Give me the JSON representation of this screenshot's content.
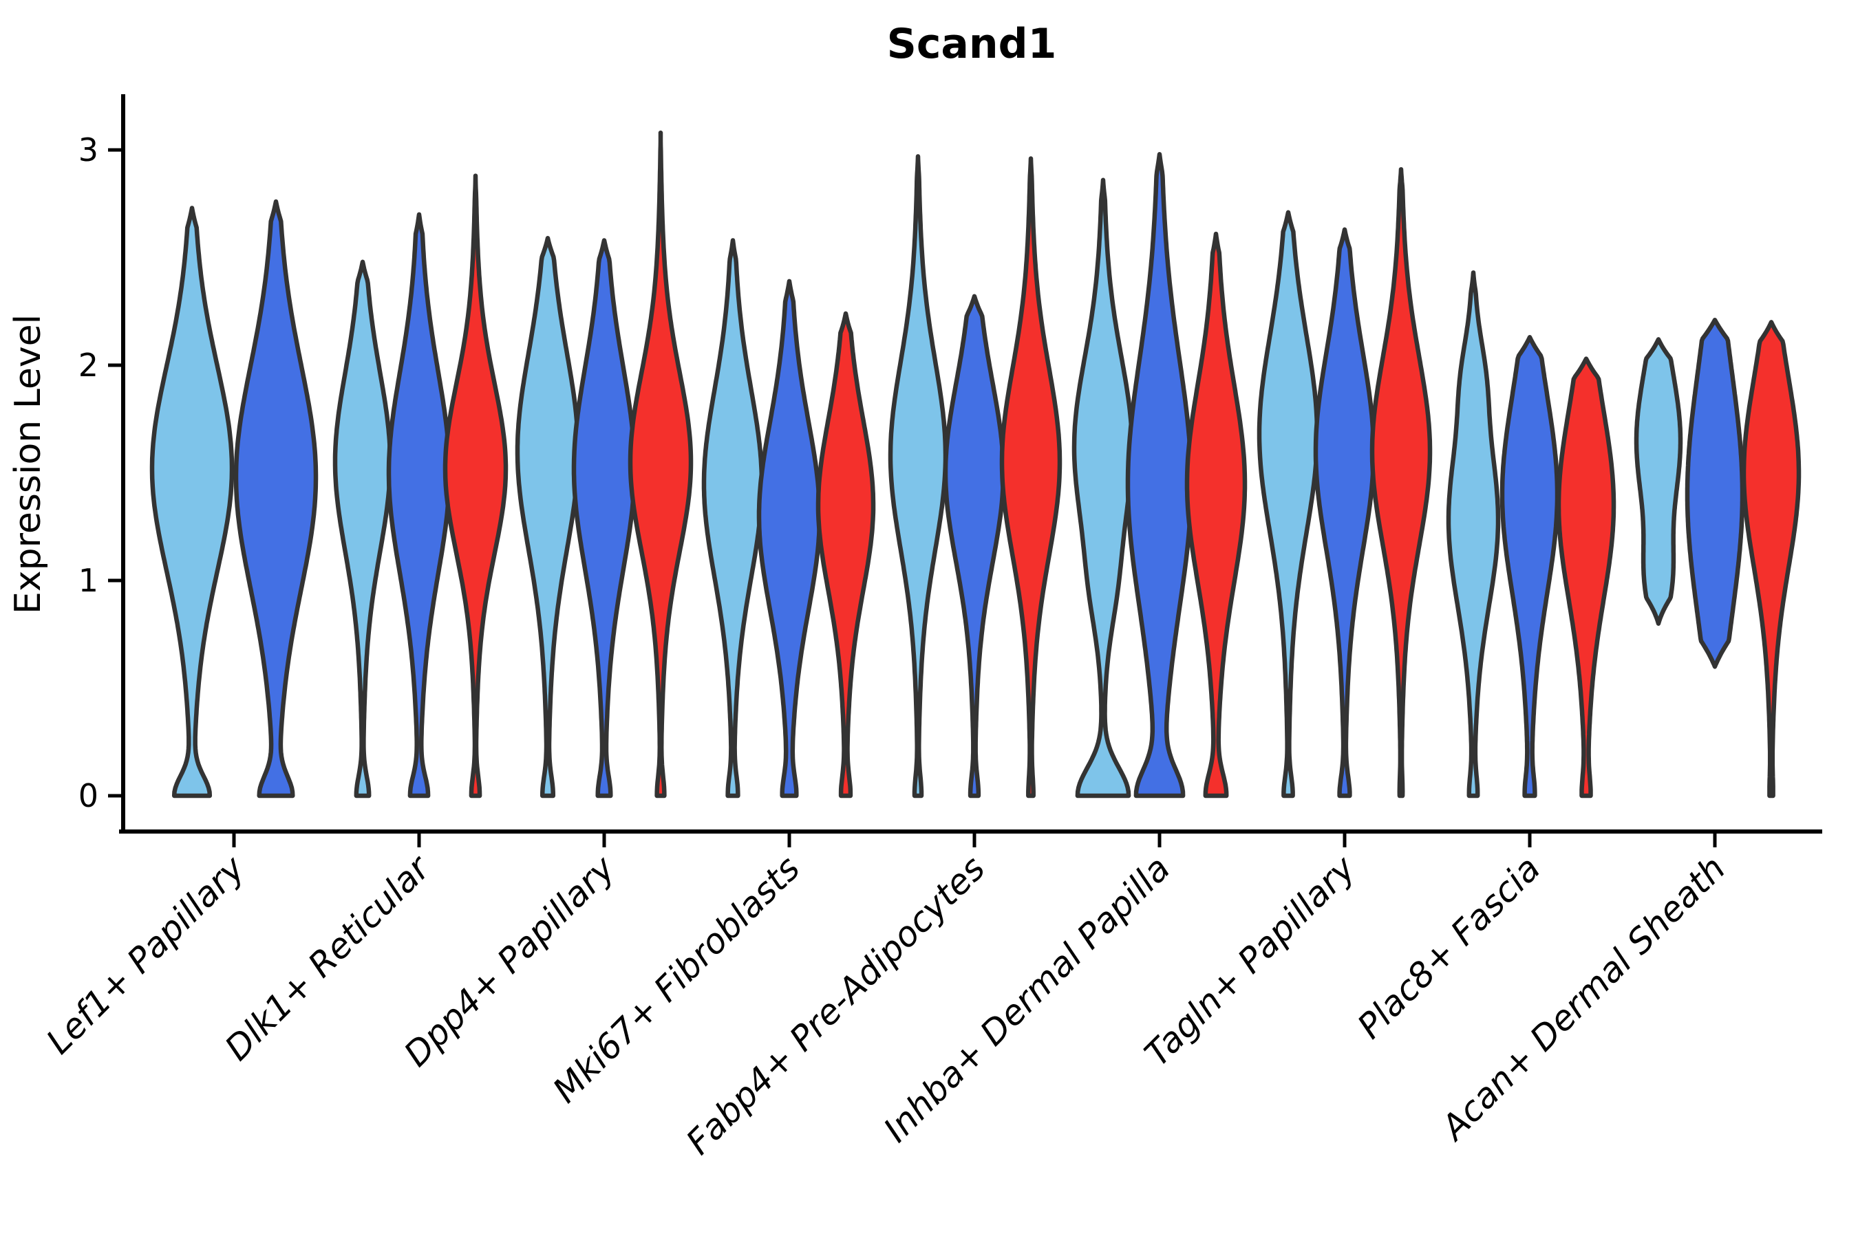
{
  "chart_data": {
    "type": "violin",
    "title": "Scand1",
    "ylabel": "Expression Level",
    "xlabel": "",
    "yticks": [
      0,
      1,
      2,
      3
    ],
    "ylim": [
      0,
      3.3
    ],
    "x_tick_rotation": 45,
    "grid": false,
    "legend": "none",
    "colors": {
      "skyblue": "#7EC4EA",
      "royalblue": "#4370E4",
      "red": "#F4302C",
      "outline": "#333333",
      "axis": "#000000"
    },
    "categories": [
      "Lef1+ Papillary",
      "Dlk1+ Reticular",
      "Dpp4+ Papillary",
      "Mki67+ Fibroblasts",
      "Fabp4+ Pre-Adipocytes",
      "Inhba+ Dermal Papilla",
      "Tagln+ Papillary",
      "Plac8+ Fascia",
      "Acan+ Dermal Sheath"
    ],
    "groups": [
      {
        "category": "Lef1+ Papillary",
        "violins": [
          {
            "color": "skyblue",
            "max": 2.73,
            "min": 0,
            "peak": 1.52,
            "spread": 0.46,
            "tail": 0.28,
            "zero_spike": 0.4,
            "zero_spread": 0.09,
            "halfwidth": 58
          },
          {
            "color": "royalblue",
            "max": 2.76,
            "min": 0,
            "peak": 1.48,
            "spread": 0.5,
            "tail": 0.28,
            "zero_spike": 0.35,
            "zero_spread": 0.09,
            "halfwidth": 58
          }
        ]
      },
      {
        "category": "Dlk1+ Reticular",
        "violins": [
          {
            "color": "skyblue",
            "max": 2.48,
            "min": 0,
            "peak": 1.55,
            "spread": 0.4,
            "tail": 0.28,
            "zero_spike": 0.22,
            "zero_spread": 0.09,
            "halfwidth": 40
          },
          {
            "color": "royalblue",
            "max": 2.7,
            "min": 0,
            "peak": 1.5,
            "spread": 0.45,
            "tail": 0.28,
            "zero_spike": 0.26,
            "zero_spread": 0.09,
            "halfwidth": 44
          },
          {
            "color": "red",
            "max": 2.88,
            "min": 0,
            "peak": 1.52,
            "spread": 0.38,
            "tail": 0.26,
            "zero_spike": 0.14,
            "zero_spread": 0.09,
            "halfwidth": 44
          }
        ]
      },
      {
        "category": "Dpp4+ Papillary",
        "violins": [
          {
            "color": "skyblue",
            "max": 2.59,
            "min": 0,
            "peak": 1.6,
            "spread": 0.44,
            "tail": 0.28,
            "zero_spike": 0.16,
            "zero_spread": 0.09,
            "halfwidth": 44
          },
          {
            "color": "royalblue",
            "max": 2.58,
            "min": 0,
            "peak": 1.52,
            "spread": 0.45,
            "tail": 0.28,
            "zero_spike": 0.18,
            "zero_spread": 0.09,
            "halfwidth": 44
          },
          {
            "color": "red",
            "max": 3.08,
            "min": 0,
            "peak": 1.55,
            "spread": 0.4,
            "tail": 0.26,
            "zero_spike": 0.12,
            "zero_spread": 0.09,
            "halfwidth": 44
          }
        ]
      },
      {
        "category": "Mki67+ Fibroblasts",
        "violins": [
          {
            "color": "skyblue",
            "max": 2.58,
            "min": 0,
            "peak": 1.45,
            "spread": 0.42,
            "tail": 0.28,
            "zero_spike": 0.15,
            "zero_spread": 0.09,
            "halfwidth": 42
          },
          {
            "color": "royalblue",
            "max": 2.39,
            "min": 0,
            "peak": 1.3,
            "spread": 0.42,
            "tail": 0.3,
            "zero_spike": 0.18,
            "zero_spread": 0.09,
            "halfwidth": 44
          },
          {
            "color": "red",
            "max": 2.24,
            "min": 0,
            "peak": 1.35,
            "spread": 0.38,
            "tail": 0.3,
            "zero_spike": 0.15,
            "zero_spread": 0.09,
            "halfwidth": 40
          }
        ]
      },
      {
        "category": "Fabp4+ Pre-Adipocytes",
        "violins": [
          {
            "color": "skyblue",
            "max": 2.97,
            "min": 0,
            "peak": 1.58,
            "spread": 0.42,
            "tail": 0.26,
            "zero_spike": 0.12,
            "zero_spread": 0.09,
            "halfwidth": 40
          },
          {
            "color": "royalblue",
            "max": 2.32,
            "min": 0,
            "peak": 1.5,
            "spread": 0.4,
            "tail": 0.28,
            "zero_spike": 0.13,
            "zero_spread": 0.09,
            "halfwidth": 42
          },
          {
            "color": "red",
            "max": 2.96,
            "min": 0,
            "peak": 1.55,
            "spread": 0.42,
            "tail": 0.26,
            "zero_spike": 0.08,
            "zero_spread": 0.09,
            "halfwidth": 42
          }
        ]
      },
      {
        "category": "Inhba+ Dermal Papilla",
        "violins": [
          {
            "color": "skyblue",
            "max": 2.86,
            "min": 0,
            "peak": 1.62,
            "spread": 0.4,
            "tail": 0.3,
            "zero_spike": 0.85,
            "zero_spread": 0.13,
            "halfwidth": 42,
            "bumps": [
              {
                "at": 0.95,
                "amp": 0.22,
                "spread": 0.2
              }
            ]
          },
          {
            "color": "royalblue",
            "max": 2.98,
            "min": 0,
            "peak": 1.45,
            "spread": 0.55,
            "tail": 0.3,
            "zero_spike": 0.62,
            "zero_spread": 0.12,
            "halfwidth": 46
          },
          {
            "color": "red",
            "max": 2.61,
            "min": 0,
            "peak": 1.45,
            "spread": 0.44,
            "tail": 0.28,
            "zero_spike": 0.32,
            "zero_spread": 0.1,
            "halfwidth": 42
          }
        ]
      },
      {
        "category": "Tagln+ Papillary",
        "violins": [
          {
            "color": "skyblue",
            "max": 2.71,
            "min": 0,
            "peak": 1.68,
            "spread": 0.44,
            "tail": 0.28,
            "zero_spike": 0.15,
            "zero_spread": 0.09,
            "halfwidth": 42
          },
          {
            "color": "royalblue",
            "max": 2.63,
            "min": 0,
            "peak": 1.6,
            "spread": 0.44,
            "tail": 0.28,
            "zero_spike": 0.16,
            "zero_spread": 0.09,
            "halfwidth": 42
          },
          {
            "color": "red",
            "max": 2.91,
            "min": 0,
            "peak": 1.6,
            "spread": 0.42,
            "tail": 0.26,
            "zero_spike": 0.05,
            "zero_spread": 0.09,
            "halfwidth": 42
          }
        ]
      },
      {
        "category": "Plac8+ Fascia",
        "violins": [
          {
            "color": "skyblue",
            "max": 2.43,
            "min": 0,
            "peak": 1.28,
            "spread": 0.38,
            "tail": 0.3,
            "zero_spike": 0.14,
            "zero_spread": 0.09,
            "halfwidth": 36,
            "bumps": [
              {
                "at": 1.95,
                "amp": 0.3,
                "spread": 0.18
              }
            ]
          },
          {
            "color": "royalblue",
            "max": 2.13,
            "min": 0,
            "peak": 1.4,
            "spread": 0.44,
            "tail": 0.3,
            "zero_spike": 0.14,
            "zero_spread": 0.09,
            "halfwidth": 40
          },
          {
            "color": "red",
            "max": 2.03,
            "min": 0,
            "peak": 1.35,
            "spread": 0.42,
            "tail": 0.3,
            "zero_spike": 0.12,
            "zero_spread": 0.09,
            "halfwidth": 40
          }
        ]
      },
      {
        "category": "Acan+ Dermal Sheath",
        "violins": [
          {
            "color": "skyblue",
            "max": 2.12,
            "min": 0.8,
            "peak": 1.65,
            "spread": 0.3,
            "tail": 0.5,
            "zero_spike": 0,
            "zero_spread": 0.09,
            "halfwidth": 32,
            "bumps": [
              {
                "at": 1.0,
                "amp": 0.6,
                "spread": 0.18
              }
            ]
          },
          {
            "color": "royalblue",
            "max": 2.21,
            "min": 0.6,
            "peak": 1.4,
            "spread": 0.55,
            "tail": 0.2,
            "zero_spike": 0,
            "zero_spread": 0.09,
            "halfwidth": 40
          },
          {
            "color": "red",
            "max": 2.2,
            "min": 0,
            "peak": 1.5,
            "spread": 0.42,
            "tail": 0.28,
            "zero_spike": 0.05,
            "zero_spread": 0.09,
            "halfwidth": 40
          }
        ]
      }
    ]
  }
}
